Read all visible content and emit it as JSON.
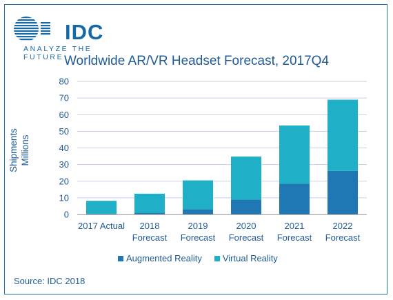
{
  "logo": {
    "name": "IDC",
    "tagline": "ANALYZE THE FUTURE",
    "color": "#1768a6"
  },
  "source": "Source: IDC 2018",
  "colors": {
    "ar": "#1f78b4",
    "vr": "#1fb0c8",
    "text": "#1f5a97",
    "grid": "#c8cfe6",
    "axis": "#888888"
  },
  "chart_data": {
    "type": "bar",
    "stacked": true,
    "title": "Worldwide AR/VR Headset Forecast, 2017Q4",
    "ylabel": [
      "Shipments",
      "Millions"
    ],
    "xlabel": "",
    "ylim": [
      0,
      80
    ],
    "yticks": [
      0,
      10,
      20,
      30,
      40,
      50,
      60,
      70,
      80
    ],
    "grid": true,
    "legend": "bottom",
    "categories": [
      [
        "2017 Actual"
      ],
      [
        "2018",
        "Forecast"
      ],
      [
        "2019",
        "Forecast"
      ],
      [
        "2020",
        "Forecast"
      ],
      [
        "2021",
        "Forecast"
      ],
      [
        "2022",
        "Forecast"
      ]
    ],
    "series": [
      {
        "name": "Augmented Reality",
        "color": "#1f78b4",
        "values": [
          0.4,
          1.0,
          3.2,
          9.0,
          18.5,
          26.2
        ]
      },
      {
        "name": "Virtual Reality",
        "color": "#1fb0c8",
        "values": [
          7.8,
          11.5,
          17.3,
          25.8,
          35.0,
          42.8
        ]
      }
    ]
  }
}
